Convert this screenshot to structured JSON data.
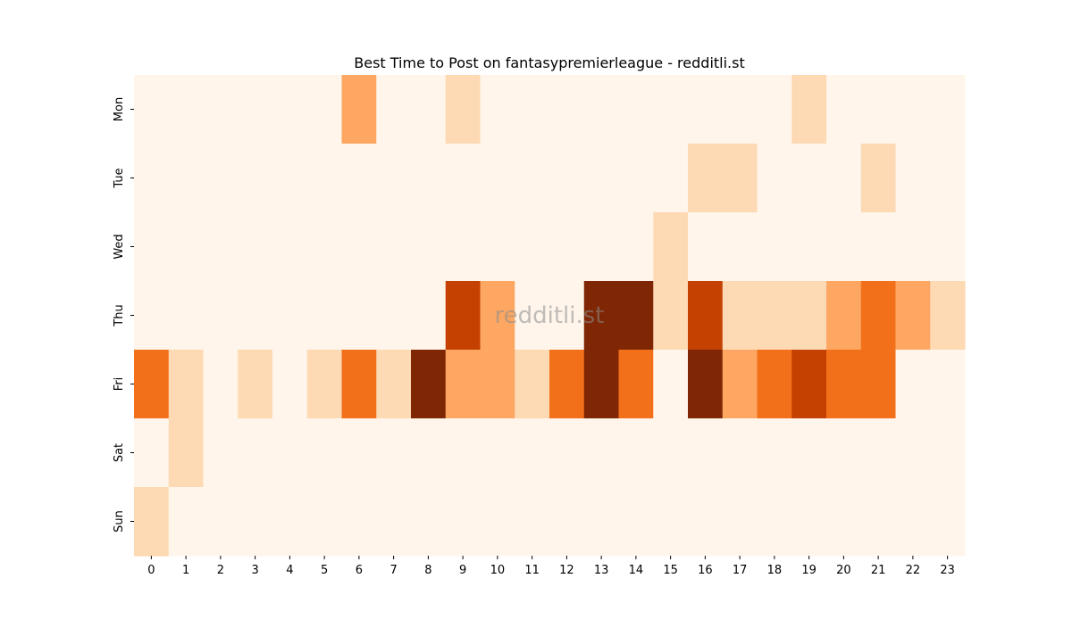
{
  "chart_data": {
    "type": "heatmap",
    "title": "Best Time to Post on fantasypremierleague - redditli.st",
    "xlabel": "",
    "ylabel": "",
    "x": [
      "0",
      "1",
      "2",
      "3",
      "4",
      "5",
      "6",
      "7",
      "8",
      "9",
      "10",
      "11",
      "12",
      "13",
      "14",
      "15",
      "16",
      "17",
      "18",
      "19",
      "20",
      "21",
      "22",
      "23"
    ],
    "y": [
      "Mon",
      "Tue",
      "Wed",
      "Thu",
      "Fri",
      "Sat",
      "Sun"
    ],
    "values": [
      [
        0,
        0,
        0,
        0,
        0,
        0,
        2,
        0,
        0,
        1,
        0,
        0,
        0,
        0,
        0,
        0,
        0,
        0,
        0,
        1,
        0,
        0,
        0,
        0
      ],
      [
        0,
        0,
        0,
        0,
        0,
        0,
        0,
        0,
        0,
        0,
        0,
        0,
        0,
        0,
        0,
        0,
        1,
        1,
        0,
        0,
        0,
        1,
        0,
        0
      ],
      [
        0,
        0,
        0,
        0,
        0,
        0,
        0,
        0,
        0,
        0,
        0,
        0,
        0,
        0,
        0,
        1,
        0,
        0,
        0,
        0,
        0,
        0,
        0,
        0
      ],
      [
        0,
        0,
        0,
        0,
        0,
        0,
        0,
        0,
        0,
        4,
        2,
        0,
        0,
        5,
        5,
        1,
        4,
        1,
        1,
        1,
        2,
        3,
        2,
        1
      ],
      [
        3,
        1,
        0,
        1,
        0,
        1,
        3,
        1,
        5,
        2,
        2,
        1,
        3,
        5,
        3,
        0,
        5,
        2,
        3,
        4,
        3,
        3,
        0,
        0
      ],
      [
        0,
        1,
        0,
        0,
        0,
        0,
        0,
        0,
        0,
        0,
        0,
        0,
        0,
        0,
        0,
        0,
        0,
        0,
        0,
        0,
        0,
        0,
        0,
        0
      ],
      [
        1,
        0,
        0,
        0,
        0,
        0,
        0,
        0,
        0,
        0,
        0,
        0,
        0,
        0,
        0,
        0,
        0,
        0,
        0,
        0,
        0,
        0,
        0,
        0
      ]
    ],
    "colors": [
      "#fff5eb",
      "#fdd9b4",
      "#fda762",
      "#f3701b",
      "#c54102",
      "#7f2704"
    ],
    "watermark": "redditli.st",
    "grid": false,
    "legend": "none"
  }
}
